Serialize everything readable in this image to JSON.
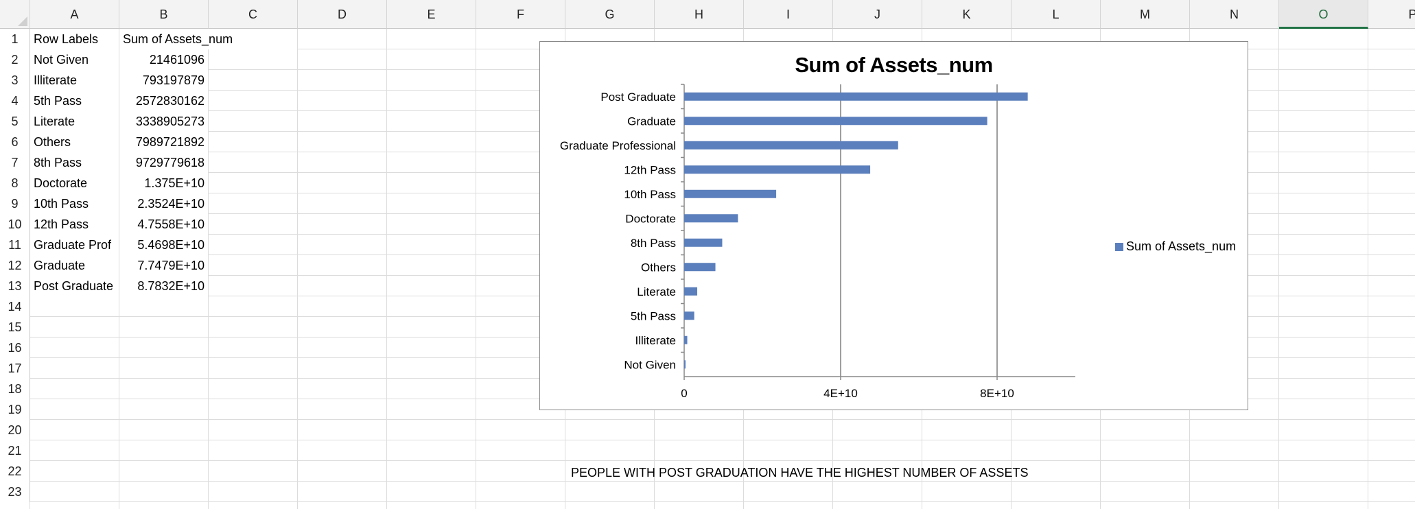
{
  "columns": [
    "A",
    "B",
    "C",
    "D",
    "E",
    "F",
    "G",
    "H",
    "I",
    "J",
    "K",
    "L",
    "M",
    "N",
    "O",
    "P"
  ],
  "selected_column": "O",
  "rows": [
    "1",
    "2",
    "3",
    "4",
    "5",
    "6",
    "7",
    "8",
    "9",
    "10",
    "11",
    "12",
    "13",
    "14",
    "15",
    "16",
    "17",
    "18",
    "19",
    "20",
    "21",
    "22",
    "23"
  ],
  "pivot": {
    "header_label": "Row Labels",
    "header_value": "Sum of Assets_num",
    "entries": [
      {
        "label": "Not Given",
        "value": "21461096"
      },
      {
        "label": "Illiterate",
        "value": "793197879"
      },
      {
        "label": "5th Pass",
        "value": "2572830162"
      },
      {
        "label": "Literate",
        "value": "3338905273"
      },
      {
        "label": "Others",
        "value": "7989721892"
      },
      {
        "label": "8th Pass",
        "value": "9729779618"
      },
      {
        "label": "Doctorate",
        "value": "1.375E+10"
      },
      {
        "label": "10th Pass",
        "value": "2.3524E+10"
      },
      {
        "label": "12th Pass",
        "value": "4.7558E+10"
      },
      {
        "label": "Graduate Prof",
        "value": "5.4698E+10"
      },
      {
        "label": "Graduate",
        "value": "7.7479E+10"
      },
      {
        "label": "Post Graduate",
        "value": "8.7832E+10"
      }
    ]
  },
  "note": "PEOPLE WITH POST GRADUATION HAVE THE HIGHEST NUMBER OF ASSETS",
  "chart_data": {
    "type": "bar",
    "orientation": "horizontal",
    "title": "Sum of Assets_num",
    "categories": [
      "Post Graduate",
      "Graduate",
      "Graduate Professional",
      "12th Pass",
      "10th Pass",
      "Doctorate",
      "8th Pass",
      "Others",
      "Literate",
      "5th Pass",
      "Illiterate",
      "Not Given"
    ],
    "series": [
      {
        "name": "Sum of Assets_num",
        "values": [
          87832000000,
          77479000000,
          54698000000,
          47558000000,
          23524000000,
          13750000000,
          9729779618,
          7989721892,
          3338905273,
          2572830162,
          793197879,
          21461096
        ]
      }
    ],
    "x_ticks": [
      "0",
      "4E+10",
      "8E+10"
    ],
    "x_tick_values": [
      0,
      40000000000,
      80000000000
    ],
    "xlim": [
      0,
      100000000000
    ],
    "grid": "vertical major gridlines",
    "legend": "right",
    "bar_color": "#5b7fbc"
  }
}
